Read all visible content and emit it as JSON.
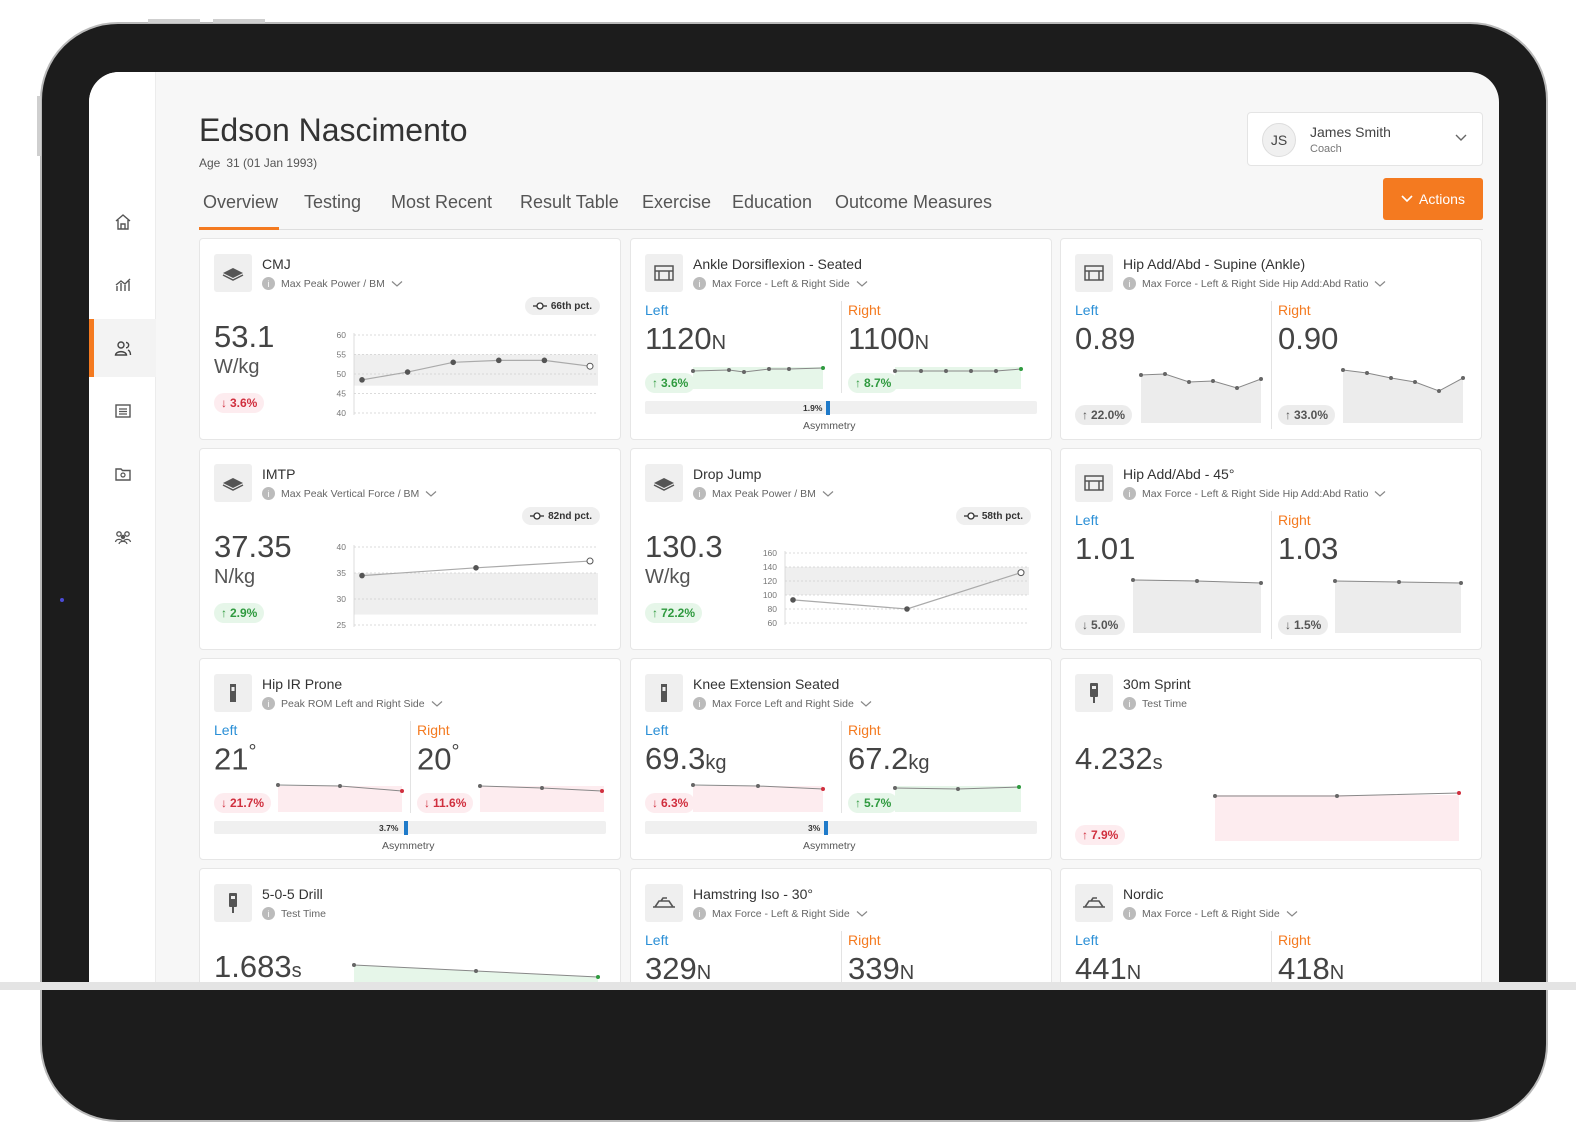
{
  "athlete": {
    "name": "Edson Nascimento",
    "age_label": "Age",
    "age_value": "31 (01 Jan 1993)"
  },
  "user": {
    "initials": "JS",
    "name": "James Smith",
    "role": "Coach"
  },
  "actions_label": "Actions",
  "tabs": [
    "Overview",
    "Testing",
    "Most Recent",
    "Result Table",
    "Exercise",
    "Education",
    "Outcome Measures"
  ],
  "asymmetry_label": "Asymmetry",
  "left_label": "Left",
  "right_label": "Right",
  "colors": {
    "accent": "#f47a20",
    "left": "#2a8fd6",
    "negative": "#d02f3e",
    "positive": "#2f9a3f",
    "bar": "#1f7ac9"
  },
  "cards": {
    "cmj": {
      "title": "CMJ",
      "subtitle": "Max Peak Power / BM",
      "percentile": "66th pct.",
      "value": "53.1",
      "unit": "W/kg",
      "change": "3.6%",
      "direction": "down",
      "chart": {
        "y_ticks": [
          "60",
          "55",
          "50",
          "45",
          "40"
        ],
        "ylim": [
          40,
          60
        ],
        "band": [
          47,
          55
        ],
        "values": [
          48.5,
          50.5,
          53,
          53.5,
          53.5,
          52
        ]
      }
    },
    "ankle": {
      "title": "Ankle Dorsiflexion - Seated",
      "subtitle": "Max Force - Left & Right Side",
      "left_value": "1120",
      "left_unit": "N",
      "right_value": "1100",
      "right_unit": "N",
      "left_change": "3.6%",
      "right_change": "8.7%",
      "asymmetry": "1.9%",
      "asymmetry_fraction": 0.019
    },
    "hip_supine": {
      "title": "Hip Add/Abd - Supine (Ankle)",
      "subtitle": "Max Force - Left & Right Side Hip Add:Abd Ratio",
      "left_value": "0.89",
      "right_value": "0.90",
      "left_change": "22.0%",
      "right_change": "33.0%"
    },
    "imtp": {
      "title": "IMTP",
      "subtitle": "Max Peak Vertical Force / BM",
      "percentile": "82nd pct.",
      "value": "37.35",
      "unit": "N/kg",
      "change": "2.9%",
      "direction": "up",
      "chart": {
        "y_ticks": [
          "40",
          "35",
          "30",
          "25"
        ],
        "ylim": [
          25,
          40
        ],
        "band": [
          27,
          35
        ],
        "values": [
          34.5,
          36,
          37.3
        ]
      }
    },
    "drop_jump": {
      "title": "Drop Jump",
      "subtitle": "Max Peak Power / BM",
      "percentile": "58th pct.",
      "value": "130.3",
      "unit": "W/kg",
      "change": "72.2%",
      "direction": "up",
      "chart": {
        "y_ticks": [
          "160",
          "140",
          "120",
          "100",
          "80",
          "60"
        ],
        "ylim": [
          60,
          160
        ],
        "band": [
          100,
          140
        ],
        "values": [
          93,
          80,
          132
        ]
      }
    },
    "hip_45": {
      "title": "Hip Add/Abd - 45°",
      "subtitle": "Max Force - Left & Right Side Hip Add:Abd Ratio",
      "left_value": "1.01",
      "right_value": "1.03",
      "left_change": "5.0%",
      "right_change": "1.5%"
    },
    "hip_ir": {
      "title": "Hip IR Prone",
      "subtitle": "Peak ROM Left and Right Side",
      "left_value": "21",
      "left_unit": "°",
      "right_value": "20",
      "right_unit": "°",
      "left_change": "21.7%",
      "right_change": "11.6%",
      "asymmetry": "3.7%",
      "asymmetry_fraction": 0.037
    },
    "knee": {
      "title": "Knee Extension Seated",
      "subtitle": "Max Force Left and Right Side",
      "left_value": "69.3",
      "left_unit": "kg",
      "right_value": "67.2",
      "right_unit": "kg",
      "left_change": "6.3%",
      "right_change": "5.7%",
      "asymmetry": "3%",
      "asymmetry_fraction": 0.03
    },
    "sprint": {
      "title": "30m Sprint",
      "subtitle": "Test Time",
      "value": "4.232",
      "unit": "s",
      "change": "7.9%"
    },
    "drill": {
      "title": "5-0-5 Drill",
      "subtitle": "Test Time",
      "value": "1.683",
      "unit": "s"
    },
    "hamstring": {
      "title": "Hamstring Iso - 30°",
      "subtitle": "Max Force - Left & Right Side",
      "left_value": "329",
      "left_unit": "N",
      "right_value": "339",
      "right_unit": "N"
    },
    "nordic": {
      "title": "Nordic",
      "subtitle": "Max Force - Left & Right Side",
      "left_value": "441",
      "left_unit": "N",
      "right_value": "418",
      "right_unit": "N"
    }
  }
}
